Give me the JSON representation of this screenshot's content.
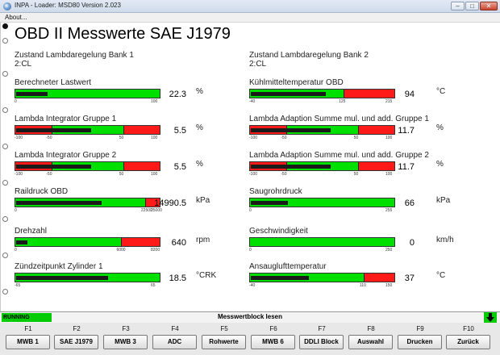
{
  "window": {
    "title": "INPA - Loader:  MSD80 Version 2.023",
    "minimize": "–",
    "maximize": "□",
    "close": "✕"
  },
  "menu": {
    "about": "About..."
  },
  "page_title": "OBD II Messwerte SAE J1979",
  "left_status": [
    {
      "label": "Zustand Lambdaregelung Bank 1",
      "value": "2:CL"
    }
  ],
  "right_status": [
    {
      "label": "Zustand Lambdaregelung Bank 2",
      "value": "2:CL"
    }
  ],
  "left_gauges": [
    {
      "label": "Berechneter Lastwert",
      "value": "22.3",
      "unit": "%",
      "min": 0,
      "max": 100,
      "level": 22.3,
      "ticks": [
        "0",
        "100"
      ],
      "zones": [
        {
          "from": 0,
          "to": 100,
          "color": "green"
        }
      ]
    },
    {
      "label": "Lambda Integrator Gruppe 1",
      "value": "5.5",
      "unit": "%",
      "min": -100,
      "max": 100,
      "level": 5.5,
      "ticks": [
        "-100",
        "-50",
        "50",
        "100"
      ],
      "zones": [
        {
          "from": -100,
          "to": -50,
          "color": "red"
        },
        {
          "from": -50,
          "to": 50,
          "color": "green"
        },
        {
          "from": 50,
          "to": 100,
          "color": "red"
        }
      ]
    },
    {
      "label": "Lambda Integrator Gruppe 2",
      "value": "5.5",
      "unit": "%",
      "min": -100,
      "max": 100,
      "level": 5.5,
      "ticks": [
        "-100",
        "-50",
        "50",
        "100"
      ],
      "zones": [
        {
          "from": -100,
          "to": -50,
          "color": "red"
        },
        {
          "from": -50,
          "to": 50,
          "color": "green"
        },
        {
          "from": 50,
          "to": 100,
          "color": "red"
        }
      ]
    },
    {
      "label": "Raildruck OBD",
      "value": "14990.5",
      "unit": "kPa",
      "min": 0,
      "max": 25000,
      "level": 14990.5,
      "ticks": [
        "0",
        "22500",
        "25000"
      ],
      "zones": [
        {
          "from": 0,
          "to": 22500,
          "color": "green"
        },
        {
          "from": 22500,
          "to": 25000,
          "color": "red"
        }
      ]
    },
    {
      "label": "Drehzahl",
      "value": "640",
      "unit": "rpm",
      "min": 0,
      "max": 8200,
      "level": 640,
      "ticks": [
        "0",
        "6000",
        "8200"
      ],
      "zones": [
        {
          "from": 0,
          "to": 6000,
          "color": "green"
        },
        {
          "from": 6000,
          "to": 8200,
          "color": "red"
        }
      ]
    },
    {
      "label": "Zündzeitpunkt Zylinder 1",
      "value": "18.5",
      "unit": "°CRK",
      "min": -65,
      "max": 65,
      "level": 18.5,
      "ticks": [
        "-65",
        "65"
      ],
      "zones": [
        {
          "from": -65,
          "to": 65,
          "color": "green"
        }
      ]
    }
  ],
  "right_gauges": [
    {
      "label": "Kühlmitteltemperatur OBD",
      "value": "94",
      "unit": "°C",
      "min": -40,
      "max": 215,
      "level": 94,
      "ticks": [
        "-40",
        "125",
        "215"
      ],
      "zones": [
        {
          "from": -40,
          "to": 125,
          "color": "green"
        },
        {
          "from": 125,
          "to": 215,
          "color": "red"
        }
      ]
    },
    {
      "label": "Lambda Adaption Summe mul. und add. Gruppe 1",
      "value": "11.7",
      "unit": "%",
      "min": -100,
      "max": 100,
      "level": 11.7,
      "ticks": [
        "-100",
        "-50",
        "50",
        "100"
      ],
      "zones": [
        {
          "from": -100,
          "to": -50,
          "color": "red"
        },
        {
          "from": -50,
          "to": 50,
          "color": "green"
        },
        {
          "from": 50,
          "to": 100,
          "color": "red"
        }
      ]
    },
    {
      "label": "Lambda Adaption Summe mul. und add. Gruppe 2",
      "value": "11.7",
      "unit": "%",
      "min": -100,
      "max": 100,
      "level": 11.7,
      "ticks": [
        "-100",
        "-50",
        "50",
        "100"
      ],
      "zones": [
        {
          "from": -100,
          "to": -50,
          "color": "red"
        },
        {
          "from": -50,
          "to": 50,
          "color": "green"
        },
        {
          "from": 50,
          "to": 100,
          "color": "red"
        }
      ]
    },
    {
      "label": "Saugrohrdruck",
      "value": "66",
      "unit": "kPa",
      "min": 0,
      "max": 255,
      "level": 66,
      "ticks": [
        "0",
        "255"
      ],
      "zones": [
        {
          "from": 0,
          "to": 255,
          "color": "green"
        }
      ]
    },
    {
      "label": "Geschwindigkeit",
      "value": "0",
      "unit": "km/h",
      "min": 0,
      "max": 250,
      "level": 0,
      "ticks": [
        "0",
        "250"
      ],
      "zones": [
        {
          "from": 0,
          "to": 250,
          "color": "green"
        }
      ]
    },
    {
      "label": "Ansauglufttemperatur",
      "value": "37",
      "unit": "°C",
      "min": -40,
      "max": 150,
      "level": 37,
      "ticks": [
        "-40",
        "110",
        "150"
      ],
      "zones": [
        {
          "from": -40,
          "to": 110,
          "color": "green"
        },
        {
          "from": 110,
          "to": 150,
          "color": "red"
        }
      ]
    }
  ],
  "status": {
    "running": "RUNNING",
    "message": "Messwertblock lesen"
  },
  "fkeys": [
    {
      "key": "F1",
      "label": "MWB 1"
    },
    {
      "key": "F2",
      "label": "SAE J1979"
    },
    {
      "key": "F3",
      "label": "MWB 3"
    },
    {
      "key": "F4",
      "label": "ADC"
    },
    {
      "key": "F5",
      "label": "Rohwerte"
    },
    {
      "key": "F6",
      "label": "MWB 6"
    },
    {
      "key": "F7",
      "label": "DDLI Block"
    },
    {
      "key": "F8",
      "label": "Auswahl"
    },
    {
      "key": "F9",
      "label": "Drucken"
    },
    {
      "key": "F10",
      "label": "Zurück"
    }
  ],
  "colors": {
    "green": "#00e000",
    "red": "#ff1a1a",
    "running": "#00cc00"
  }
}
